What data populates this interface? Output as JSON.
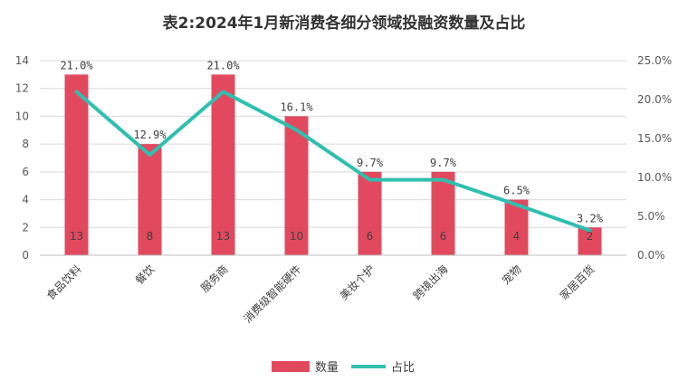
{
  "chart_data": {
    "type": "bar",
    "title": "表2:2024年1月新消费各细分领域投融资数量及占比",
    "categories": [
      "食品饮料",
      "餐饮",
      "服务商",
      "消费级智能硬件",
      "美妆个护",
      "跨境出海",
      "宠物",
      "家居百货"
    ],
    "series": [
      {
        "name": "数量",
        "type": "bar",
        "axis": "left",
        "color": "#E2495E",
        "values": [
          13,
          8,
          13,
          10,
          6,
          6,
          4,
          2
        ],
        "labels": [
          "13",
          "8",
          "13",
          "10",
          "6",
          "6",
          "4",
          "2"
        ]
      },
      {
        "name": "占比",
        "type": "line",
        "axis": "right",
        "color": "#2FBFB0",
        "values": [
          21.0,
          12.9,
          21.0,
          16.1,
          9.7,
          9.7,
          6.5,
          3.2
        ],
        "labels": [
          "21.0%",
          "12.9%",
          "21.0%",
          "16.1%",
          "9.7%",
          "9.7%",
          "6.5%",
          "3.2%"
        ]
      }
    ],
    "y_left": {
      "min": 0,
      "max": 14,
      "ticks": [
        0,
        2,
        4,
        6,
        8,
        10,
        12,
        14
      ],
      "tick_labels": [
        "0",
        "2",
        "4",
        "6",
        "8",
        "10",
        "12",
        "14"
      ]
    },
    "y_right": {
      "min": 0,
      "max": 25,
      "ticks": [
        0,
        5,
        10,
        15,
        20,
        25
      ],
      "tick_labels": [
        "0.0%",
        "5.0%",
        "10.0%",
        "15.0%",
        "20.0%",
        "25.0%"
      ]
    },
    "grid": true,
    "legend_position": "bottom"
  }
}
